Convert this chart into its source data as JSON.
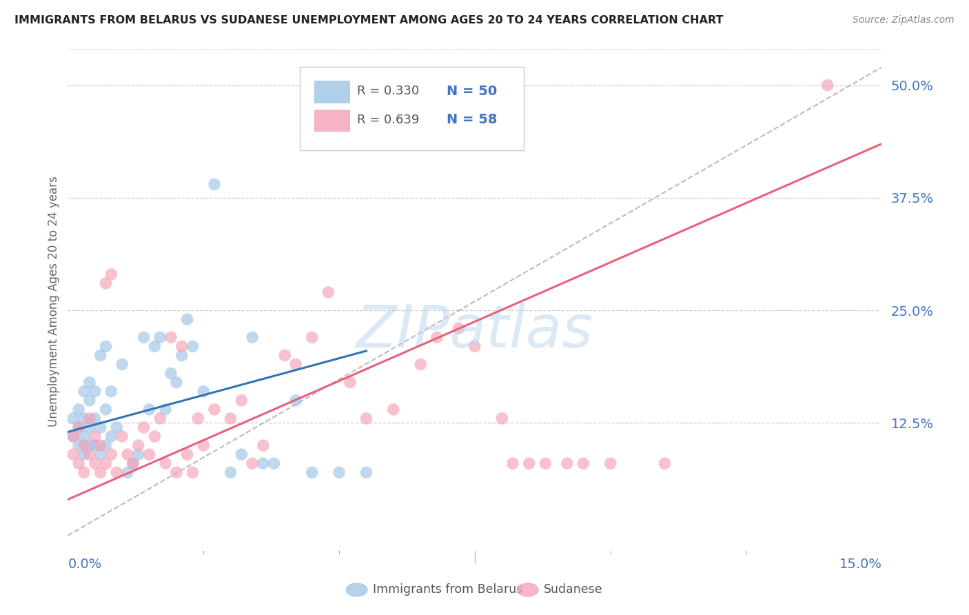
{
  "title": "IMMIGRANTS FROM BELARUS VS SUDANESE UNEMPLOYMENT AMONG AGES 20 TO 24 YEARS CORRELATION CHART",
  "source": "Source: ZipAtlas.com",
  "ylabel": "Unemployment Among Ages 20 to 24 years",
  "y_ticks": [
    0.0,
    0.125,
    0.25,
    0.375,
    0.5
  ],
  "y_tick_labels": [
    "",
    "12.5%",
    "25.0%",
    "37.5%",
    "50.0%"
  ],
  "xlim": [
    0.0,
    0.15
  ],
  "ylim": [
    -0.02,
    0.54
  ],
  "legend_r_belarus": "R = 0.330",
  "legend_n_belarus": "N = 50",
  "legend_r_sudanese": "R = 0.639",
  "legend_n_sudanese": "N = 58",
  "color_belarus": "#9DC3E6",
  "color_sudanese": "#F4A0B5",
  "color_belarus_line": "#2E74B5",
  "color_sudanese_line": "#E8607A",
  "color_dashed_line": "#AAAAAA",
  "color_axis_labels": "#4472C4",
  "background_color": "#FFFFFF",
  "belarus_line_x0": 0.0,
  "belarus_line_y0": 0.115,
  "belarus_line_x1": 0.055,
  "belarus_line_y1": 0.205,
  "sudanese_line_x0": 0.0,
  "sudanese_line_y0": 0.04,
  "sudanese_line_x1": 0.15,
  "sudanese_line_y1": 0.435,
  "belarus_x": [
    0.001,
    0.001,
    0.002,
    0.002,
    0.002,
    0.003,
    0.003,
    0.003,
    0.003,
    0.004,
    0.004,
    0.004,
    0.004,
    0.005,
    0.005,
    0.005,
    0.006,
    0.006,
    0.006,
    0.007,
    0.007,
    0.007,
    0.008,
    0.008,
    0.009,
    0.01,
    0.011,
    0.012,
    0.013,
    0.014,
    0.015,
    0.016,
    0.017,
    0.018,
    0.019,
    0.02,
    0.021,
    0.022,
    0.023,
    0.025,
    0.027,
    0.03,
    0.032,
    0.034,
    0.036,
    0.038,
    0.042,
    0.045,
    0.05,
    0.055
  ],
  "belarus_y": [
    0.13,
    0.11,
    0.12,
    0.1,
    0.14,
    0.09,
    0.11,
    0.13,
    0.16,
    0.1,
    0.12,
    0.15,
    0.17,
    0.1,
    0.13,
    0.16,
    0.09,
    0.12,
    0.2,
    0.1,
    0.14,
    0.21,
    0.11,
    0.16,
    0.12,
    0.19,
    0.07,
    0.08,
    0.09,
    0.22,
    0.14,
    0.21,
    0.22,
    0.14,
    0.18,
    0.17,
    0.2,
    0.24,
    0.21,
    0.16,
    0.39,
    0.07,
    0.09,
    0.22,
    0.08,
    0.08,
    0.15,
    0.07,
    0.07,
    0.07
  ],
  "sudanese_x": [
    0.001,
    0.001,
    0.002,
    0.002,
    0.003,
    0.003,
    0.004,
    0.004,
    0.005,
    0.005,
    0.006,
    0.006,
    0.007,
    0.007,
    0.008,
    0.008,
    0.009,
    0.01,
    0.011,
    0.012,
    0.013,
    0.014,
    0.015,
    0.016,
    0.017,
    0.018,
    0.019,
    0.02,
    0.021,
    0.022,
    0.023,
    0.024,
    0.025,
    0.027,
    0.03,
    0.032,
    0.034,
    0.036,
    0.04,
    0.042,
    0.045,
    0.048,
    0.052,
    0.055,
    0.06,
    0.065,
    0.068,
    0.072,
    0.075,
    0.08,
    0.082,
    0.085,
    0.088,
    0.092,
    0.095,
    0.1,
    0.11,
    0.14
  ],
  "sudanese_y": [
    0.09,
    0.11,
    0.08,
    0.12,
    0.07,
    0.1,
    0.09,
    0.13,
    0.08,
    0.11,
    0.07,
    0.1,
    0.08,
    0.28,
    0.09,
    0.29,
    0.07,
    0.11,
    0.09,
    0.08,
    0.1,
    0.12,
    0.09,
    0.11,
    0.13,
    0.08,
    0.22,
    0.07,
    0.21,
    0.09,
    0.07,
    0.13,
    0.1,
    0.14,
    0.13,
    0.15,
    0.08,
    0.1,
    0.2,
    0.19,
    0.22,
    0.27,
    0.17,
    0.13,
    0.14,
    0.19,
    0.22,
    0.23,
    0.21,
    0.13,
    0.08,
    0.08,
    0.08,
    0.08,
    0.08,
    0.08,
    0.08,
    0.5
  ]
}
